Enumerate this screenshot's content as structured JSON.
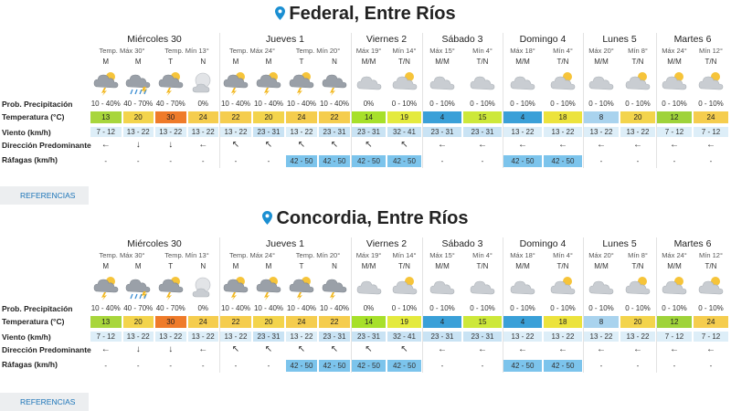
{
  "labels": {
    "precip": "Prob. Precipitación",
    "temp": "Temperatura (°C)",
    "wind": "Viento (km/h)",
    "direction": "Dirección Predominante",
    "gusts": "Ráfagas (km/h)"
  },
  "references_label": "REFERENCIAS",
  "colors": {
    "temp_4": "#3aa0d8",
    "temp_8": "#a9d3ee",
    "temp_12": "#9fd33a",
    "temp_13": "#a8d63c",
    "temp_14": "#a7e02a",
    "temp_15": "#cde83a",
    "temp_18": "#ece33d",
    "temp_19": "#e4ea3e",
    "temp_20": "#f3d44c",
    "temp_22": "#f5cd4e",
    "temp_24": "#f5cd4e",
    "temp_30": "#ef7b2a",
    "wind_light": "#ddeef8",
    "wind_mid": "#c9e3f4",
    "gust": "#7cc4ec",
    "link": "#1b74b8",
    "pin": "#1b8fd2"
  },
  "cities": [
    {
      "name": "Federal, Entre Ríos",
      "days": [
        {
          "name": "Miércoles 30",
          "sub": [
            "Temp. Máx 30°",
            "Temp. Mín 13°"
          ],
          "periods": [
            "M",
            "M",
            "T",
            "N"
          ],
          "icons": [
            "storm-sun-icon",
            "heavy-rain-icon",
            "storm-sun-icon",
            "cloudy-night-icon"
          ],
          "precip": [
            "10 - 40%",
            "40 - 70%",
            "40 - 70%",
            "0%"
          ],
          "temp": [
            "13",
            "20",
            "30",
            "24"
          ],
          "wind": [
            "7 - 12",
            "13 - 22",
            "13 - 22",
            "13 - 22"
          ],
          "dir": [
            "←",
            "↓",
            "↓",
            "←"
          ],
          "gust": [
            "-",
            "-",
            "-",
            "-"
          ]
        },
        {
          "name": "Jueves 1",
          "sub": [
            "Temp. Máx 24°",
            "Temp. Mín 20°"
          ],
          "periods": [
            "M",
            "M",
            "T",
            "N"
          ],
          "icons": [
            "storm-sun-icon",
            "storm-sun-icon",
            "storm-sun-icon",
            "storm-cloud-icon"
          ],
          "precip": [
            "10 - 40%",
            "10 - 40%",
            "10 - 40%",
            "10 - 40%"
          ],
          "temp": [
            "22",
            "20",
            "24",
            "22"
          ],
          "wind": [
            "13 - 22",
            "23 - 31",
            "13 - 22",
            "23 - 31"
          ],
          "dir": [
            "↖",
            "↖",
            "↖",
            "↖"
          ],
          "gust": [
            "-",
            "-",
            "42 - 50",
            "42 - 50"
          ]
        },
        {
          "name": "Viernes 2",
          "sub": [
            "Máx 19°",
            "Mín 14°"
          ],
          "periods": [
            "M/M",
            "T/N"
          ],
          "icons": [
            "cloud-icon",
            "partly-cloudy-icon"
          ],
          "precip": [
            "0%",
            "0 - 10%"
          ],
          "temp": [
            "14",
            "19"
          ],
          "wind": [
            "23 - 31",
            "32 - 41"
          ],
          "dir": [
            "↖",
            "↖"
          ],
          "gust": [
            "42 - 50",
            "42 - 50"
          ]
        },
        {
          "name": "Sábado 3",
          "sub": [
            "Máx 15°",
            "Mín 4°"
          ],
          "periods": [
            "M/M",
            "T/N"
          ],
          "icons": [
            "cloud-icon",
            "cloud-icon"
          ],
          "precip": [
            "0 - 10%",
            "0 - 10%"
          ],
          "temp": [
            "4",
            "15"
          ],
          "wind": [
            "23 - 31",
            "23 - 31"
          ],
          "dir": [
            "←",
            "←"
          ],
          "gust": [
            "-",
            "-"
          ]
        },
        {
          "name": "Domingo 4",
          "sub": [
            "Máx 18°",
            "Mín 4°"
          ],
          "periods": [
            "M/M",
            "T/N"
          ],
          "icons": [
            "cloud-icon",
            "partly-cloudy-icon"
          ],
          "precip": [
            "0 - 10%",
            "0 - 10%"
          ],
          "temp": [
            "4",
            "18"
          ],
          "wind": [
            "13 - 22",
            "13 - 22"
          ],
          "dir": [
            "←",
            "←"
          ],
          "gust": [
            "42 - 50",
            "42 - 50"
          ]
        },
        {
          "name": "Lunes 5",
          "sub": [
            "Máx 20°",
            "Mín 8°"
          ],
          "periods": [
            "M/M",
            "T/N"
          ],
          "icons": [
            "cloud-icon",
            "partly-cloudy-icon"
          ],
          "precip": [
            "0 - 10%",
            "0 - 10%"
          ],
          "temp": [
            "8",
            "20"
          ],
          "wind": [
            "13 - 22",
            "13 - 22"
          ],
          "dir": [
            "←",
            "←"
          ],
          "gust": [
            "-",
            "-"
          ]
        },
        {
          "name": "Martes 6",
          "sub": [
            "Máx 24°",
            "Mín 12°"
          ],
          "periods": [
            "M/M",
            "T/N"
          ],
          "icons": [
            "partly-cloudy-icon",
            "partly-cloudy-icon"
          ],
          "precip": [
            "0 - 10%",
            "0 - 10%"
          ],
          "temp": [
            "12",
            "24"
          ],
          "wind": [
            "7 - 12",
            "7 - 12"
          ],
          "dir": [
            "←",
            "←"
          ],
          "gust": [
            "-",
            "-"
          ]
        }
      ]
    },
    {
      "name": "Concordia, Entre Ríos",
      "days": [
        {
          "name": "Miércoles 30",
          "sub": [
            "Temp. Máx 30°",
            "Temp. Mín 13°"
          ],
          "periods": [
            "M",
            "M",
            "T",
            "N"
          ],
          "icons": [
            "storm-sun-icon",
            "heavy-rain-icon",
            "storm-sun-icon",
            "cloudy-night-icon"
          ],
          "precip": [
            "10 - 40%",
            "40 - 70%",
            "40 - 70%",
            "0%"
          ],
          "temp": [
            "13",
            "20",
            "30",
            "24"
          ],
          "wind": [
            "7 - 12",
            "13 - 22",
            "13 - 22",
            "13 - 22"
          ],
          "dir": [
            "←",
            "↓",
            "↓",
            "←"
          ],
          "gust": [
            "-",
            "-",
            "-",
            "-"
          ]
        },
        {
          "name": "Jueves 1",
          "sub": [
            "Temp. Máx 24°",
            "Temp. Mín 20°"
          ],
          "periods": [
            "M",
            "M",
            "T",
            "N"
          ],
          "icons": [
            "storm-sun-icon",
            "storm-sun-icon",
            "storm-sun-icon",
            "storm-cloud-icon"
          ],
          "precip": [
            "10 - 40%",
            "10 - 40%",
            "10 - 40%",
            "10 - 40%"
          ],
          "temp": [
            "22",
            "20",
            "24",
            "22"
          ],
          "wind": [
            "13 - 22",
            "23 - 31",
            "13 - 22",
            "23 - 31"
          ],
          "dir": [
            "↖",
            "↖",
            "↖",
            "↖"
          ],
          "gust": [
            "-",
            "-",
            "42 - 50",
            "42 - 50"
          ]
        },
        {
          "name": "Viernes 2",
          "sub": [
            "Máx 19°",
            "Mín 14°"
          ],
          "periods": [
            "M/M",
            "T/N"
          ],
          "icons": [
            "cloud-icon",
            "partly-cloudy-icon"
          ],
          "precip": [
            "0%",
            "0 - 10%"
          ],
          "temp": [
            "14",
            "19"
          ],
          "wind": [
            "23 - 31",
            "32 - 41"
          ],
          "dir": [
            "↖",
            "↖"
          ],
          "gust": [
            "42 - 50",
            "42 - 50"
          ]
        },
        {
          "name": "Sábado 3",
          "sub": [
            "Máx 15°",
            "Mín 4°"
          ],
          "periods": [
            "M/M",
            "T/N"
          ],
          "icons": [
            "cloud-icon",
            "cloud-icon"
          ],
          "precip": [
            "0 - 10%",
            "0 - 10%"
          ],
          "temp": [
            "4",
            "15"
          ],
          "wind": [
            "23 - 31",
            "23 - 31"
          ],
          "dir": [
            "←",
            "←"
          ],
          "gust": [
            "-",
            "-"
          ]
        },
        {
          "name": "Domingo 4",
          "sub": [
            "Máx 18°",
            "Mín 4°"
          ],
          "periods": [
            "M/M",
            "T/N"
          ],
          "icons": [
            "cloud-icon",
            "partly-cloudy-icon"
          ],
          "precip": [
            "0 - 10%",
            "0 - 10%"
          ],
          "temp": [
            "4",
            "18"
          ],
          "wind": [
            "13 - 22",
            "13 - 22"
          ],
          "dir": [
            "←",
            "←"
          ],
          "gust": [
            "42 - 50",
            "42 - 50"
          ]
        },
        {
          "name": "Lunes 5",
          "sub": [
            "Máx 20°",
            "Mín 8°"
          ],
          "periods": [
            "M/M",
            "T/N"
          ],
          "icons": [
            "cloud-icon",
            "partly-cloudy-icon"
          ],
          "precip": [
            "0 - 10%",
            "0 - 10%"
          ],
          "temp": [
            "8",
            "20"
          ],
          "wind": [
            "13 - 22",
            "13 - 22"
          ],
          "dir": [
            "←",
            "←"
          ],
          "gust": [
            "-",
            "-"
          ]
        },
        {
          "name": "Martes 6",
          "sub": [
            "Máx 24°",
            "Mín 12°"
          ],
          "periods": [
            "M/M",
            "T/N"
          ],
          "icons": [
            "partly-cloudy-icon",
            "partly-cloudy-icon"
          ],
          "precip": [
            "0 - 10%",
            "0 - 10%"
          ],
          "temp": [
            "12",
            "24"
          ],
          "wind": [
            "7 - 12",
            "7 - 12"
          ],
          "dir": [
            "←",
            "←"
          ],
          "gust": [
            "-",
            "-"
          ]
        }
      ]
    }
  ]
}
